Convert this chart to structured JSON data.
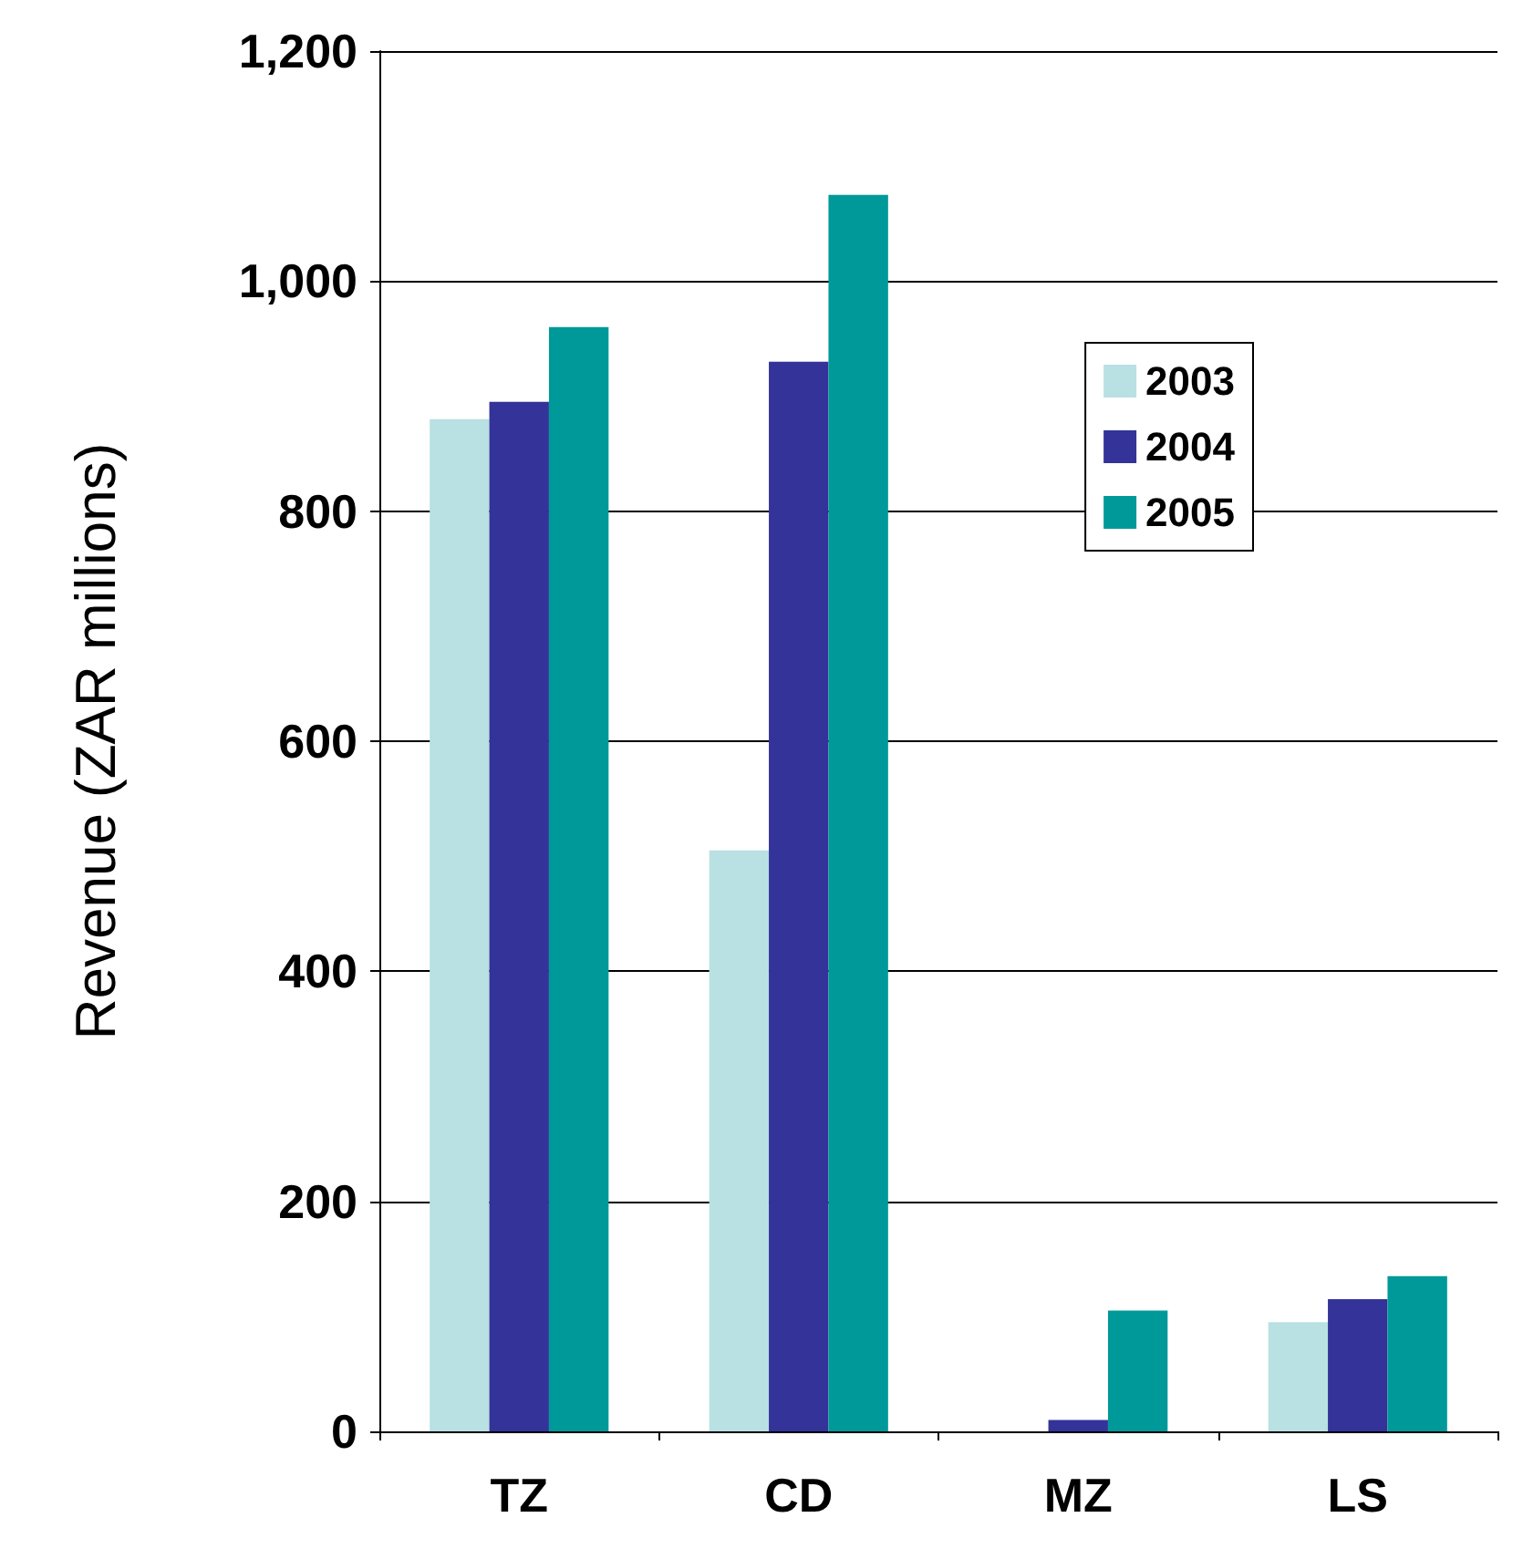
{
  "chart_data": {
    "type": "bar",
    "ylabel": "Revenue (ZAR millions)",
    "categories": [
      "TZ",
      "CD",
      "MZ",
      "LS"
    ],
    "series": [
      {
        "name": "2003",
        "color": "#b9e0e2",
        "values": [
          880,
          505,
          null,
          95
        ]
      },
      {
        "name": "2004",
        "color": "#333399",
        "values": [
          895,
          930,
          10,
          115
        ]
      },
      {
        "name": "2005",
        "color": "#009999",
        "values": [
          960,
          1075,
          105,
          135
        ]
      }
    ],
    "ylim": [
      0,
      1200
    ],
    "yticks": [
      0,
      200,
      400,
      600,
      800,
      {
        "value": 1000,
        "label": "1,000"
      },
      {
        "value": 1200,
        "label": "1,200"
      }
    ],
    "grid": "y",
    "legend": "top right"
  }
}
